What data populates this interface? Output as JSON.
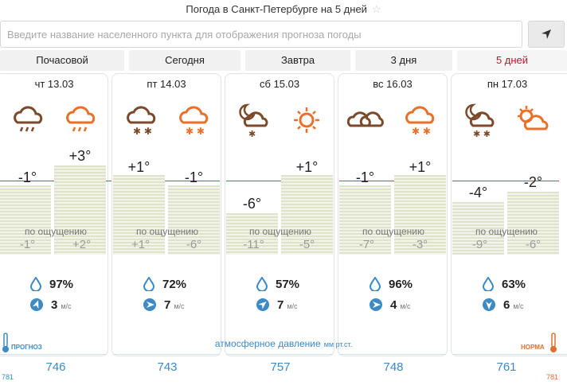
{
  "header": {
    "title": "Погода в Санкт-Петербурге на 5 дней",
    "star": "☆"
  },
  "search": {
    "placeholder": "Введите название населенного пункта для отображения прогноза погоды"
  },
  "tabs": [
    {
      "label": "Почасовой"
    },
    {
      "label": "Сегодня"
    },
    {
      "label": "Завтра"
    },
    {
      "label": "3 дня"
    },
    {
      "label": "5 дней"
    }
  ],
  "days": [
    {
      "date": "чт 13.03",
      "t_night": "-1°",
      "t_day": "+3°",
      "feels_night": "-1°",
      "feels_day": "+2°",
      "humidity": "97%",
      "wind": "3",
      "pressure": "746"
    },
    {
      "date": "пт 14.03",
      "t_night": "+1°",
      "t_day": "-1°",
      "feels_night": "+1°",
      "feels_day": "-6°",
      "humidity": "72%",
      "wind": "7",
      "pressure": "743"
    },
    {
      "date": "сб 15.03",
      "t_night": "-6°",
      "t_day": "+1°",
      "feels_night": "-11°",
      "feels_day": "-5°",
      "humidity": "57%",
      "wind": "7",
      "pressure": "757"
    },
    {
      "date": "вс 16.03",
      "t_night": "-1°",
      "t_day": "+1°",
      "feels_night": "-7°",
      "feels_day": "-3°",
      "humidity": "96%",
      "wind": "4",
      "pressure": "748"
    },
    {
      "date": "пн 17.03",
      "t_night": "-4°",
      "t_day": "-2°",
      "feels_night": "-9°",
      "feels_day": "-6°",
      "humidity": "63%",
      "wind": "6",
      "pressure": "761"
    }
  ],
  "labels": {
    "feels": "по ощущению",
    "wind_unit": "м/с",
    "pressure": "атмосферное давление",
    "pressure_unit": "мм рт.ст.",
    "forecast": "ПРОГНОЗ",
    "norm": "НОРМА",
    "left_value": "781",
    "right_value": "781"
  },
  "colors": {
    "accent": "#c0182d",
    "blue": "#3d8ac5",
    "icon_dark": "#7a4a2a",
    "icon_orange": "#e8702a"
  }
}
